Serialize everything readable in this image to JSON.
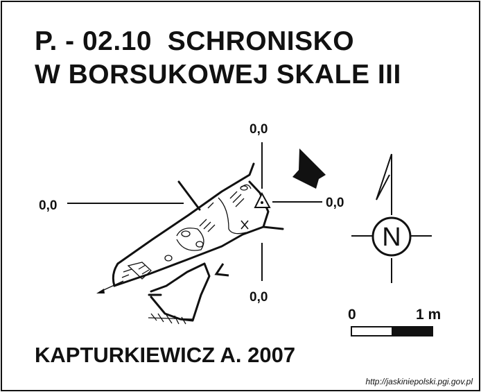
{
  "title": {
    "line1": "P. - 02.10  SCHRONISKO",
    "line2": "W BORSUKOWEJ SKALE III"
  },
  "datum_labels": {
    "top": "0,0",
    "bottom": "0,0",
    "left": "0,0",
    "right": "0,0"
  },
  "north_label": "N",
  "scale_bar": {
    "start_label": "0",
    "end_label": "1 m"
  },
  "author": "KAPTURKIEWICZ A. 2007",
  "source_url": "http://jaskiniepolski.pgi.gov.pl"
}
